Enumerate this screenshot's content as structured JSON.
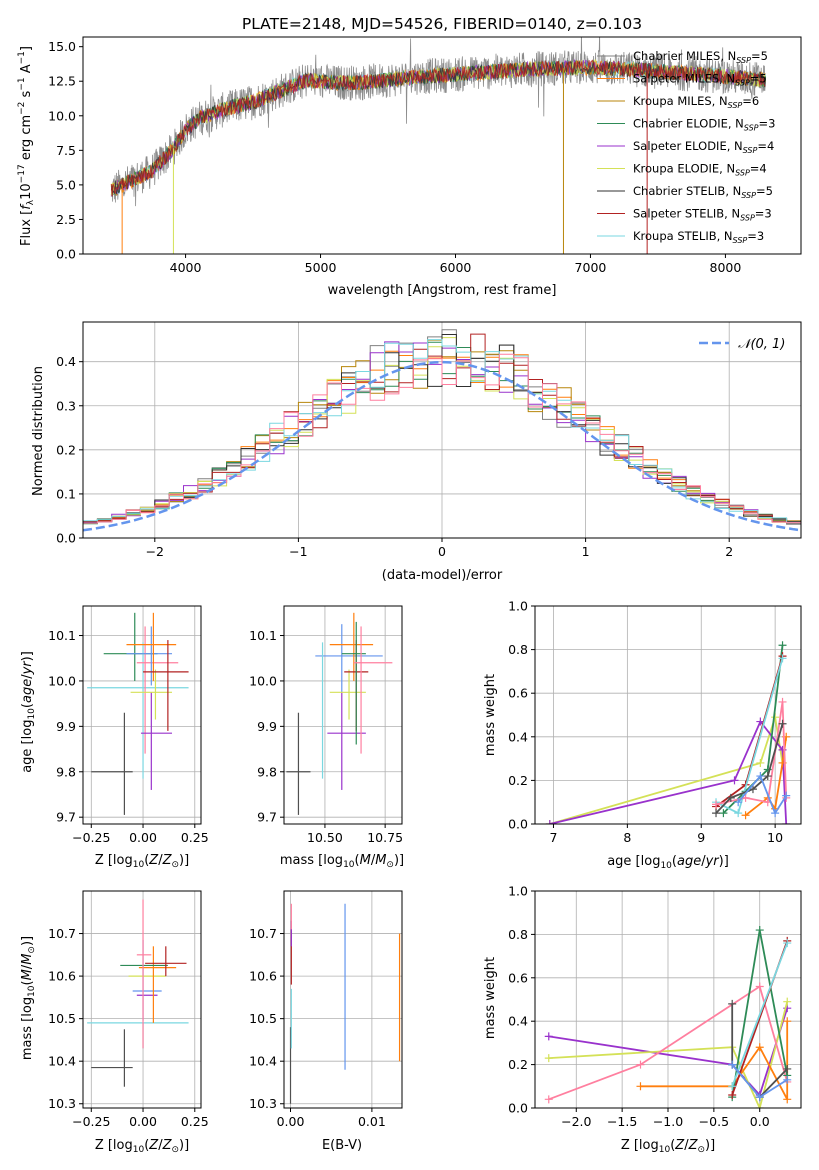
{
  "chart_data": [
    {
      "type": "line",
      "title": "PLATE=2148, MJD=54526, FIBERID=0140, z=0.103",
      "xlabel": "wavelength [Angstrom, rest frame]",
      "ylabel": "Flux [f_λ10^-17 erg cm^-2 s^-1 A^-1]",
      "xlim": [
        3240,
        8560
      ],
      "ylim": [
        0,
        15.7
      ],
      "xticks": [
        "4000",
        "5000",
        "6000",
        "7000",
        "8000"
      ],
      "yticks": [
        "0.0",
        "2.5",
        "5.0",
        "7.5",
        "10.0",
        "12.5",
        "15.0"
      ],
      "grid": false,
      "legend_position": "upper right",
      "series": [
        {
          "name": "Chabrier MILES, N_SSP=5",
          "color": "#808080"
        },
        {
          "name": "Salpeter MILES, N_SSP=5",
          "color": "#ff7f0e"
        },
        {
          "name": "Kroupa MILES, N_SSP=6",
          "color": "#b8860b"
        },
        {
          "name": "Chabrier ELODIE, N_SSP=3",
          "color": "#2e8b57"
        },
        {
          "name": "Salpeter ELODIE, N_SSP=4",
          "color": "#9932cc"
        },
        {
          "name": "Kroupa ELODIE, N_SSP=4",
          "color": "#d4e157"
        },
        {
          "name": "Chabrier STELIB, N_SSP=5",
          "color": "#303030"
        },
        {
          "name": "Salpeter STELIB, N_SSP=3",
          "color": "#b22222"
        },
        {
          "name": "Kroupa STELIB, N_SSP=3",
          "color": "#7ad7e0"
        }
      ],
      "continuum": {
        "x": [
          3450,
          3600,
          3750,
          3900,
          4000,
          4100,
          4300,
          4500,
          4700,
          4900,
          5100,
          5300,
          5500,
          5700,
          6000,
          6300,
          6600,
          7000,
          7400,
          7800,
          8300
        ],
        "y": [
          4.6,
          5.3,
          6.0,
          7.5,
          9.0,
          9.8,
          10.5,
          11.0,
          11.8,
          12.6,
          12.4,
          12.4,
          12.6,
          12.8,
          13.0,
          13.2,
          13.4,
          13.5,
          13.3,
          13.0,
          12.6
        ]
      }
    },
    {
      "type": "histogram",
      "xlabel": "(data-model)/error",
      "ylabel": "Normed distribution",
      "xlim": [
        -2.5,
        2.5
      ],
      "ylim": [
        0,
        0.49
      ],
      "xticks": [
        "−2",
        "−1",
        "0",
        "1",
        "2"
      ],
      "yticks": [
        "0.0",
        "0.1",
        "0.2",
        "0.3",
        "0.4"
      ],
      "grid": true,
      "legend": "𝒩(0, 1)",
      "legend_position": "upper right",
      "reference_curve": {
        "name": "N(0,1)",
        "mu": 0,
        "sigma": 1,
        "color": "#6495ed"
      }
    },
    {
      "type": "scatter",
      "xlabel": "Z [log10(Z/Z⊙)]",
      "ylabel": "age [log10(age/yr)]",
      "xlim": [
        -0.29,
        0.28
      ],
      "ylim": [
        9.685,
        10.165
      ],
      "xticks": [
        "−0.25",
        "0.00",
        "0.25"
      ],
      "yticks": [
        "9.7",
        "9.8",
        "9.9",
        "10.0",
        "10.1"
      ],
      "grid": true,
      "points": [
        {
          "x": -0.09,
          "y": 9.8,
          "xerr": [
            0.16,
            0.04
          ],
          "yerr": [
            0.095,
            0.13
          ],
          "color": "#505050"
        },
        {
          "x": -0.04,
          "y": 10.06,
          "xerr": [
            0.15,
            0.11
          ],
          "yerr": [
            0.06,
            0.09
          ],
          "color": "#2e8b57"
        },
        {
          "x": 0.0,
          "y": 9.985,
          "xerr": [
            0.27,
            0.22
          ],
          "yerr": [
            0.2,
            0.1
          ],
          "color": "#7ad7e0"
        },
        {
          "x": 0.01,
          "y": 10.04,
          "xerr": [
            0.04,
            0.16
          ],
          "yerr": [
            0.2,
            0.08
          ],
          "color": "#ff7f9f"
        },
        {
          "x": 0.04,
          "y": 9.885,
          "xerr": [
            0.05,
            0.1
          ],
          "yerr": [
            0.125,
            0.09
          ],
          "color": "#9932cc"
        },
        {
          "x": 0.04,
          "y": 10.06,
          "xerr": [
            0.12,
            0.1
          ],
          "yerr": [
            0.07,
            0.06
          ],
          "color": "#6495ed"
        },
        {
          "x": 0.05,
          "y": 10.08,
          "xerr": [
            0.13,
            0.11
          ],
          "yerr": [
            0.08,
            0.07
          ],
          "color": "#ff7f0e"
        },
        {
          "x": 0.06,
          "y": 9.975,
          "xerr": [
            0.12,
            0.08
          ],
          "yerr": [
            0.06,
            0.05
          ],
          "color": "#d4e157"
        },
        {
          "x": 0.12,
          "y": 10.02,
          "xerr": [
            0.12,
            0.1
          ],
          "yerr": [
            0.13,
            0.07
          ],
          "color": "#b22222"
        }
      ]
    },
    {
      "type": "scatter",
      "xlabel": "mass [log10(M/M⊙)]",
      "xlim": [
        10.33,
        10.82
      ],
      "ylim": [
        9.685,
        10.165
      ],
      "xticks": [
        "10.50",
        "10.75"
      ],
      "yticks": [
        "9.7",
        "9.8",
        "9.9",
        "10.0",
        "10.1"
      ],
      "grid": true,
      "points": [
        {
          "x": 10.39,
          "y": 9.8,
          "xerr": [
            0.05,
            0.05
          ],
          "yerr": [
            0.095,
            0.13
          ],
          "color": "#505050"
        },
        {
          "x": 10.57,
          "y": 10.055,
          "xerr": [
            0.11,
            0.17
          ],
          "yerr": [
            0.08,
            0.07
          ],
          "color": "#6495ed"
        },
        {
          "x": 10.57,
          "y": 9.885,
          "xerr": [
            0.06,
            0.1
          ],
          "yerr": [
            0.125,
            0.09
          ],
          "color": "#9932cc"
        },
        {
          "x": 10.62,
          "y": 10.08,
          "xerr": [
            0.1,
            0.08
          ],
          "yerr": [
            0.08,
            0.07
          ],
          "color": "#ff7f0e"
        },
        {
          "x": 10.6,
          "y": 9.975,
          "xerr": [
            0.08,
            0.07
          ],
          "yerr": [
            0.06,
            0.05
          ],
          "color": "#d4e157"
        },
        {
          "x": 10.63,
          "y": 10.02,
          "xerr": [
            0.05,
            0.05
          ],
          "yerr": [
            0.13,
            0.07
          ],
          "color": "#b22222"
        },
        {
          "x": 10.63,
          "y": 10.06,
          "xerr": [
            0.06,
            0.04
          ],
          "yerr": [
            0.2,
            0.07
          ],
          "color": "#2e8b57"
        },
        {
          "x": 10.65,
          "y": 10.04,
          "xerr": [
            0.03,
            0.13
          ],
          "yerr": [
            0.2,
            0.08
          ],
          "color": "#ff7f9f"
        },
        {
          "x": 10.49,
          "y": 9.985,
          "xerr": [
            0.0,
            0.0
          ],
          "yerr": [
            0.2,
            0.1
          ],
          "color": "#7ad7e0"
        }
      ]
    },
    {
      "type": "line",
      "xlabel": "age [log10(age/yr)]",
      "ylabel": "mass weight",
      "xlim": [
        6.75,
        10.35
      ],
      "ylim": [
        0,
        1.0
      ],
      "xticks": [
        "7",
        "8",
        "9",
        "10"
      ],
      "yticks": [
        "0.0",
        "0.2",
        "0.4",
        "0.6",
        "0.8",
        "1.0"
      ],
      "grid": true,
      "series": [
        {
          "color": "#d4e157",
          "x": [
            6.95,
            9.8,
            10.0,
            10.1
          ],
          "y": [
            0.0,
            0.28,
            0.49,
            0.28
          ]
        },
        {
          "color": "#9932cc",
          "x": [
            6.95,
            9.45,
            9.8,
            10.1,
            10.15
          ],
          "y": [
            0.0,
            0.2,
            0.47,
            0.34,
            0.0
          ]
        },
        {
          "color": "#2e8b57",
          "x": [
            9.3,
            9.6,
            9.9,
            10.1
          ],
          "y": [
            0.05,
            0.15,
            0.25,
            0.82
          ]
        },
        {
          "color": "#b22222",
          "x": [
            9.2,
            9.6,
            10.1
          ],
          "y": [
            0.08,
            0.18,
            0.77
          ]
        },
        {
          "color": "#7ad7e0",
          "x": [
            9.2,
            9.5,
            10.1
          ],
          "y": [
            0.1,
            0.05,
            0.76
          ]
        },
        {
          "color": "#ff7f0e",
          "x": [
            9.6,
            9.9,
            10.0,
            10.1,
            10.15
          ],
          "y": [
            0.04,
            0.12,
            0.07,
            0.28,
            0.4
          ]
        },
        {
          "color": "#ff7f9f",
          "x": [
            9.2,
            9.6,
            9.9,
            10.1,
            10.15
          ],
          "y": [
            0.09,
            0.12,
            0.1,
            0.56,
            0.12
          ]
        },
        {
          "color": "#505050",
          "x": [
            9.2,
            9.4,
            9.7,
            9.9,
            10.1
          ],
          "y": [
            0.05,
            0.12,
            0.16,
            0.22,
            0.46
          ]
        },
        {
          "color": "#6495ed",
          "x": [
            9.5,
            9.8,
            10.0,
            10.15
          ],
          "y": [
            0.1,
            0.22,
            0.05,
            0.13
          ]
        }
      ]
    },
    {
      "type": "scatter",
      "xlabel": "Z [log10(Z/Z⊙)]",
      "ylabel": "mass [log10(M/M⊙)]",
      "xlim": [
        -0.29,
        0.28
      ],
      "ylim": [
        10.29,
        10.8
      ],
      "xticks": [
        "−0.25",
        "0.00",
        "0.25"
      ],
      "yticks": [
        "10.3",
        "10.4",
        "10.5",
        "10.6",
        "10.7"
      ],
      "grid": true,
      "points": [
        {
          "x": -0.09,
          "y": 10.385,
          "xerr": [
            0.16,
            0.04
          ],
          "yerr": [
            0.045,
            0.09
          ],
          "color": "#505050"
        },
        {
          "x": 0.0,
          "y": 10.49,
          "xerr": [
            0.27,
            0.22
          ],
          "yerr": [
            0.06,
            0.0
          ],
          "color": "#7ad7e0"
        },
        {
          "x": 0.0,
          "y": 10.565,
          "xerr": [
            0.05,
            0.09
          ],
          "yerr": [
            0.07,
            0.12
          ],
          "color": "#6495ed"
        },
        {
          "x": 0.01,
          "y": 10.555,
          "xerr": [
            0.04,
            0.06
          ],
          "yerr": [
            0.0,
            0.0
          ],
          "color": "#9932cc"
        },
        {
          "x": 0.05,
          "y": 10.6,
          "xerr": [
            0.12,
            0.06
          ],
          "yerr": [
            0.0,
            0.0
          ],
          "color": "#d4e157"
        },
        {
          "x": 0.05,
          "y": 10.62,
          "xerr": [
            0.07,
            0.11
          ],
          "yerr": [
            0.13,
            0.05
          ],
          "color": "#ff7f0e"
        },
        {
          "x": -0.02,
          "y": 10.625,
          "xerr": [
            0.09,
            0.14
          ],
          "yerr": [
            0.0,
            0.0
          ],
          "color": "#2e8b57"
        },
        {
          "x": 0.0,
          "y": 10.65,
          "xerr": [
            0.03,
            0.04
          ],
          "yerr": [
            0.22,
            0.13
          ],
          "color": "#ff7f9f"
        },
        {
          "x": 0.11,
          "y": 10.63,
          "xerr": [
            0.1,
            0.1
          ],
          "yerr": [
            0.03,
            0.04
          ],
          "color": "#b22222"
        }
      ]
    },
    {
      "type": "scatter",
      "xlabel": "E(B-V)",
      "xlim": [
        -0.0008,
        0.0137
      ],
      "ylim": [
        10.29,
        10.8
      ],
      "xticks": [
        "0.00",
        "0.01"
      ],
      "yticks": [
        "10.3",
        "10.4",
        "10.5",
        "10.6",
        "10.7"
      ],
      "grid": true,
      "points": [
        {
          "x": 0.0,
          "y": 10.39,
          "xerr": [
            0,
            0
          ],
          "yerr": [
            0.09,
            0.09
          ],
          "color": "#505050"
        },
        {
          "x": 0.0001,
          "y": 10.5,
          "xerr": [
            0,
            0
          ],
          "yerr": [
            0.07,
            0.07
          ],
          "color": "#7ad7e0"
        },
        {
          "x": 0.0001,
          "y": 10.64,
          "xerr": [
            0,
            0
          ],
          "yerr": [
            0.06,
            0.07
          ],
          "color": "#b22222"
        },
        {
          "x": 0.0001,
          "y": 10.7,
          "xerr": [
            0,
            0
          ],
          "yerr": [
            0.03,
            0.03
          ],
          "color": "#9932cc"
        },
        {
          "x": 0.0001,
          "y": 10.74,
          "xerr": [
            0,
            0
          ],
          "yerr": [
            0.03,
            0.03
          ],
          "color": "#ff7f9f"
        },
        {
          "x": 0.0067,
          "y": 10.58,
          "xerr": [
            0,
            0
          ],
          "yerr": [
            0.2,
            0.19
          ],
          "color": "#6495ed"
        },
        {
          "x": 0.0134,
          "y": 10.55,
          "xerr": [
            0,
            0
          ],
          "yerr": [
            0.15,
            0.15
          ],
          "color": "#ff7f0e"
        }
      ]
    },
    {
      "type": "line",
      "xlabel": "Z [log10(Z/Z⊙)]",
      "ylabel": "mass weight",
      "xlim": [
        -2.45,
        0.45
      ],
      "ylim": [
        0,
        1.0
      ],
      "xticks": [
        "−2.0",
        "−1.5",
        "−1.0",
        "−0.5",
        "0.0"
      ],
      "yticks": [
        "0.0",
        "0.2",
        "0.4",
        "0.6",
        "0.8",
        "1.0"
      ],
      "grid": true,
      "series": [
        {
          "color": "#9932cc",
          "x": [
            -2.3,
            -0.3,
            0.0,
            0.3
          ],
          "y": [
            0.33,
            0.2,
            0.06,
            0.46
          ]
        },
        {
          "color": "#d4e157",
          "x": [
            -2.3,
            -0.3,
            0.0,
            0.3
          ],
          "y": [
            0.23,
            0.28,
            0.0,
            0.49
          ]
        },
        {
          "color": "#ff7f9f",
          "x": [
            -2.3,
            -1.3,
            0.0,
            0.3
          ],
          "y": [
            0.04,
            0.2,
            0.56,
            0.12
          ]
        },
        {
          "color": "#ff7f0e",
          "x": [
            -1.3,
            -0.3,
            0.0,
            0.3,
            0.3
          ],
          "y": [
            0.1,
            0.1,
            0.28,
            0.04,
            0.4
          ]
        },
        {
          "color": "#2e8b57",
          "x": [
            -0.3,
            0.0,
            0.3
          ],
          "y": [
            0.05,
            0.82,
            0.15
          ]
        },
        {
          "color": "#b22222",
          "x": [
            -0.3,
            0.3
          ],
          "y": [
            0.06,
            0.77
          ]
        },
        {
          "color": "#7ad7e0",
          "x": [
            -0.3,
            0.3
          ],
          "y": [
            0.1,
            0.76
          ]
        },
        {
          "color": "#505050",
          "x": [
            -0.3,
            -0.3,
            0.0,
            0.3
          ],
          "y": [
            0.48,
            0.2,
            0.05,
            0.18
          ]
        },
        {
          "color": "#6495ed",
          "x": [
            -0.3,
            0.0,
            0.3
          ],
          "y": [
            0.2,
            0.05,
            0.13
          ]
        }
      ]
    }
  ]
}
